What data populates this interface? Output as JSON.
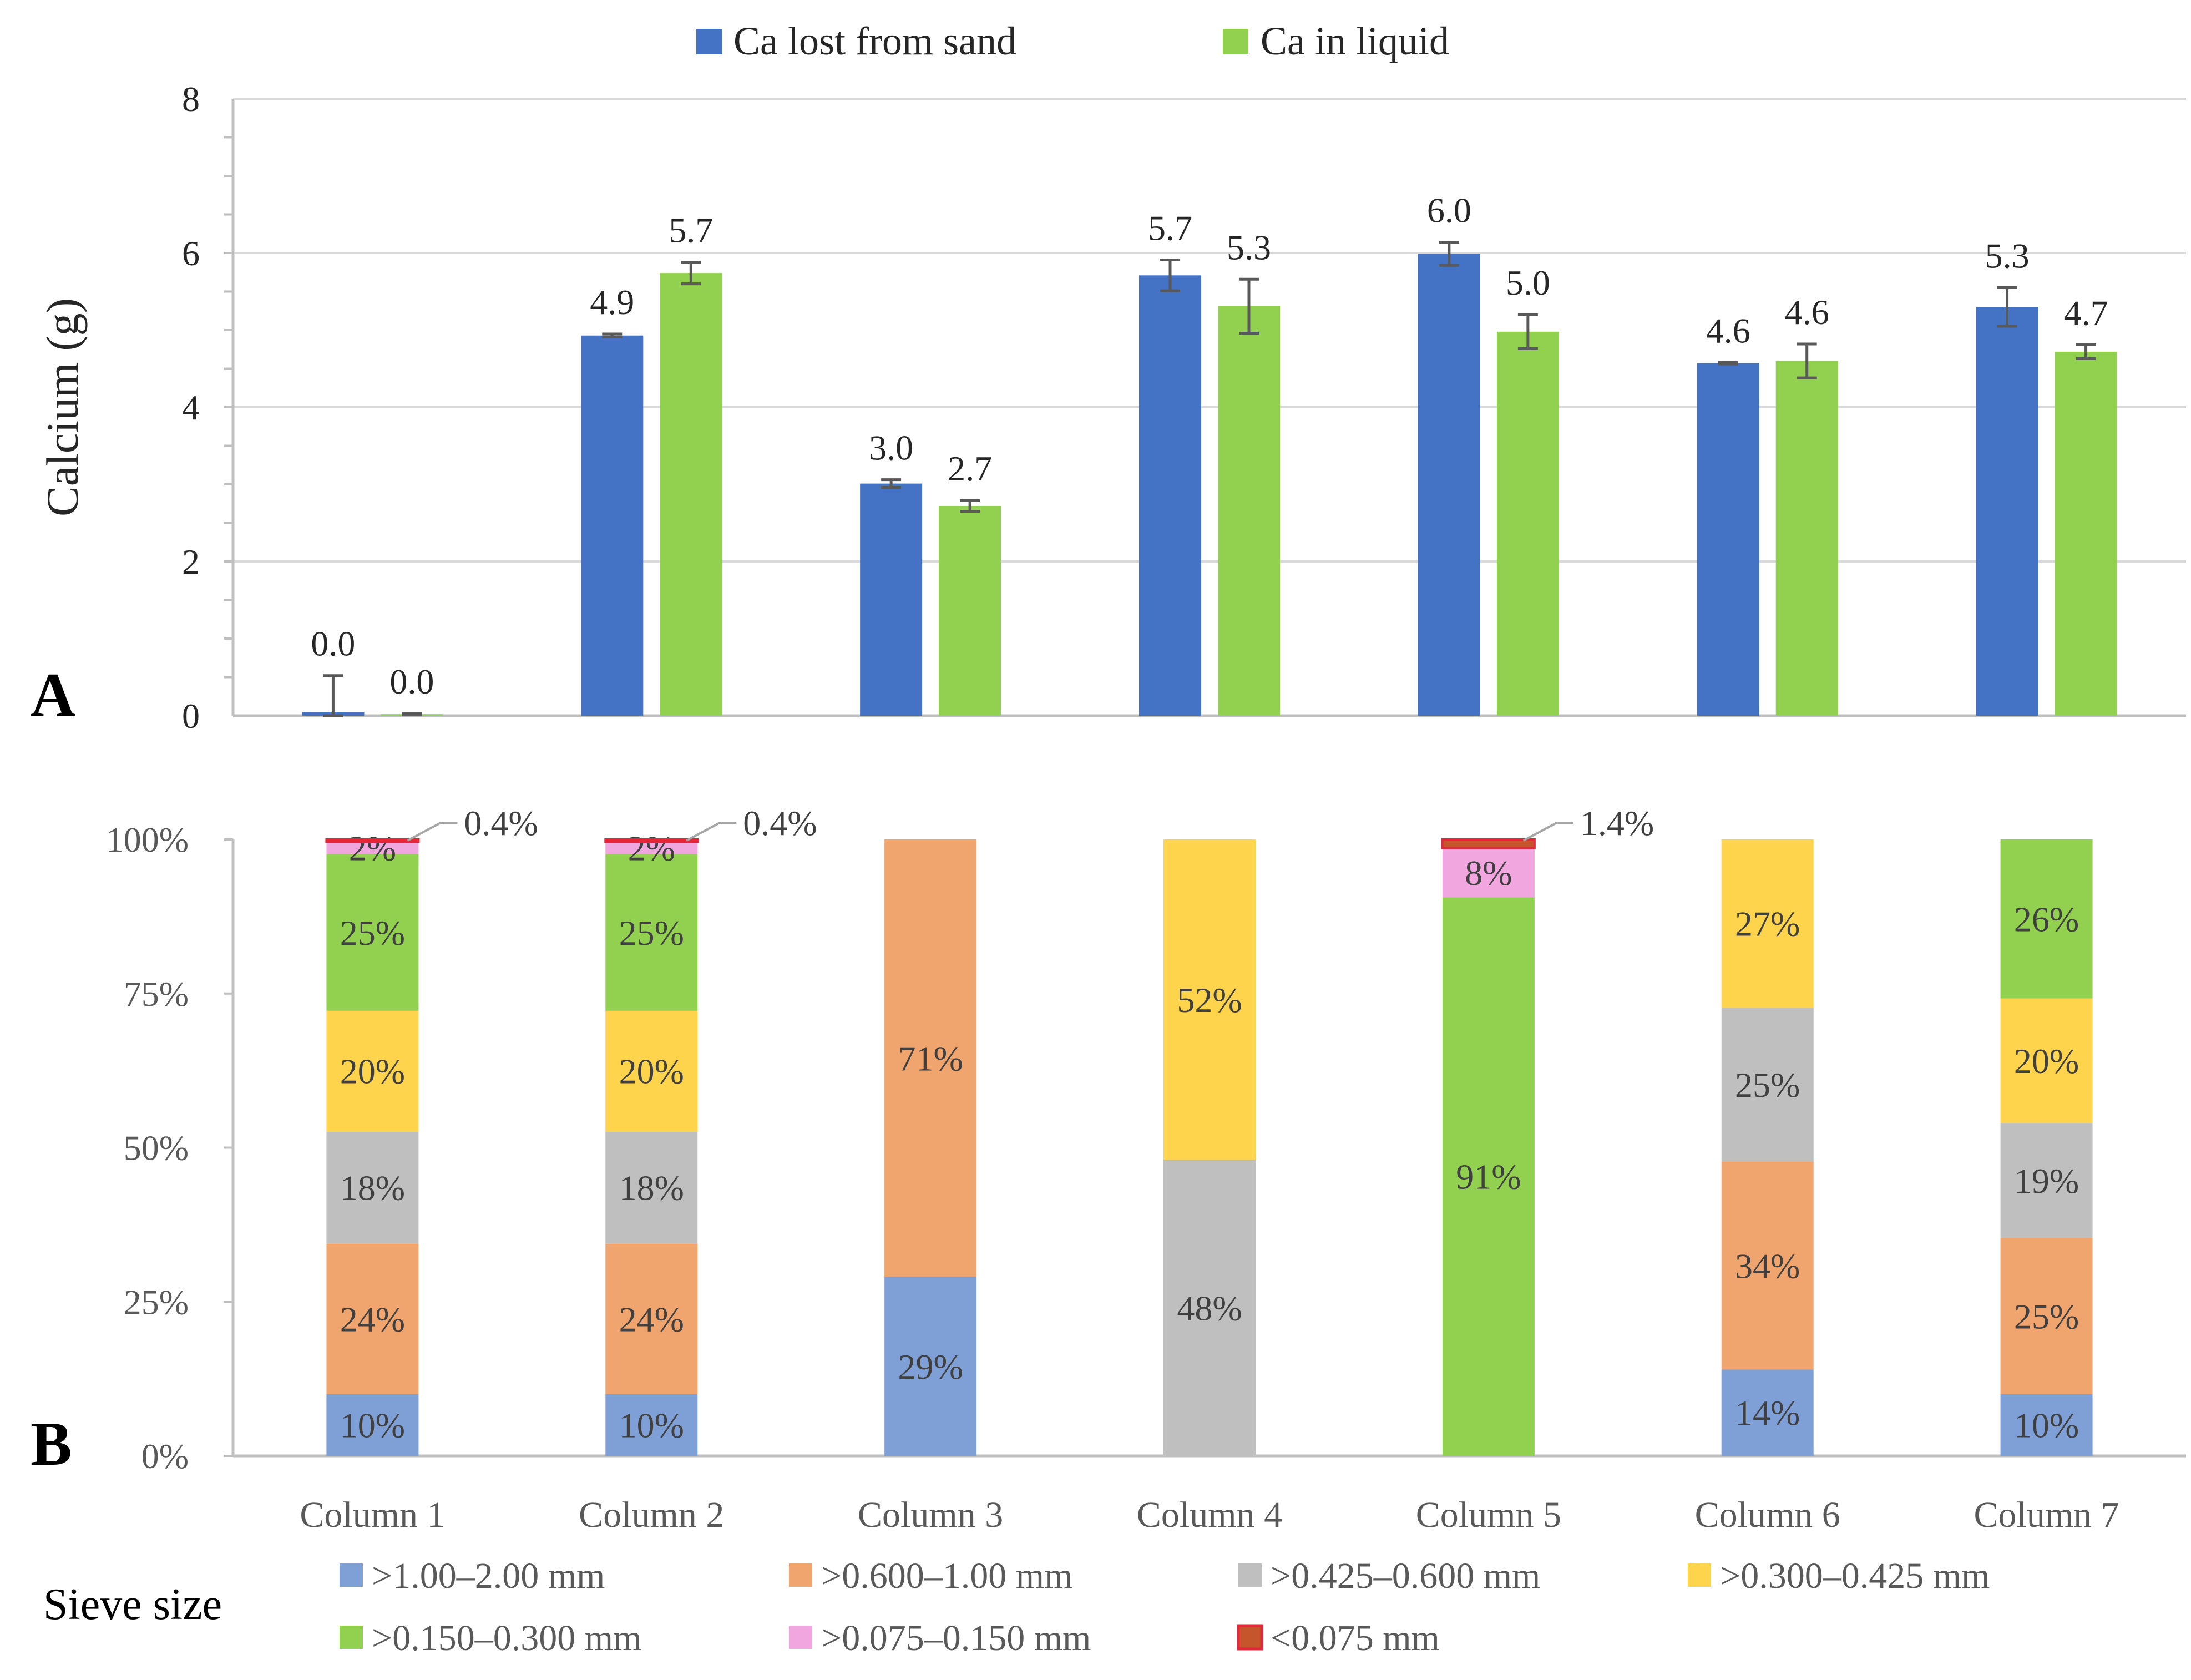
{
  "chart_data": [
    {
      "type": "bar",
      "panel_label": "A",
      "ylabel": "Calcium (g)",
      "ylim": [
        0,
        8
      ],
      "yticks": [
        0,
        2,
        4,
        6,
        8
      ],
      "grid": true,
      "legend_position": "top",
      "categories": [
        "Column 1",
        "Column 2",
        "Column 3",
        "Column 4",
        "Column 5",
        "Column 6",
        "Column 7"
      ],
      "series": [
        {
          "name": "Ca lost from sand",
          "color": "#4472C4",
          "values": [
            0.05,
            4.93,
            3.01,
            5.71,
            5.99,
            4.57,
            5.3
          ],
          "errors": [
            0.47,
            0.02,
            0.05,
            0.2,
            0.15,
            0.01,
            0.25
          ],
          "error_down": [
            0.05,
            0.02,
            0.05,
            0.2,
            0.15,
            0.01,
            0.25
          ],
          "labels": [
            "0.0",
            "4.9",
            "3.0",
            "5.7",
            "6.0",
            "4.6",
            "5.3"
          ]
        },
        {
          "name": "Ca in liquid",
          "color": "#92D050",
          "values": [
            0.02,
            5.74,
            2.72,
            5.31,
            4.98,
            4.6,
            4.72
          ],
          "errors": [
            0.01,
            0.14,
            0.07,
            0.35,
            0.22,
            0.22,
            0.09
          ],
          "error_down": [
            0.01,
            0.14,
            0.07,
            0.35,
            0.22,
            0.22,
            0.09
          ],
          "labels": [
            "0.0",
            "5.7",
            "2.7",
            "5.3",
            "5.0",
            "4.6",
            "4.7"
          ]
        }
      ]
    },
    {
      "type": "bar",
      "stacked": true,
      "panel_label": "B",
      "ylim": [
        0,
        100
      ],
      "yticks": [
        "0%",
        "25%",
        "50%",
        "75%",
        "100%"
      ],
      "categories": [
        "Column 1",
        "Column 2",
        "Column 3",
        "Column 4",
        "Column 5",
        "Column 6",
        "Column 7"
      ],
      "legend_title": "Sieve size",
      "legend_position": "bottom",
      "series": [
        {
          "name": ">1.00–2.00 mm",
          "color": "#7F9FD7",
          "values": [
            10,
            10,
            29,
            0,
            0,
            14,
            10
          ]
        },
        {
          "name": ">0.600–1.00 mm",
          "color": "#F0A46E",
          "values": [
            24.4,
            24.4,
            71,
            0,
            0,
            33.7,
            25.3
          ]
        },
        {
          "name": ">0.425–0.600 mm",
          "color": "#BFBFBF",
          "values": [
            18.2,
            18.2,
            0,
            48,
            0,
            25,
            18.7
          ]
        },
        {
          "name": ">0.300–0.425 mm",
          "color": "#FFD44D",
          "values": [
            19.6,
            19.6,
            0,
            52,
            0,
            27.3,
            20.2
          ]
        },
        {
          "name": ">0.150–0.300 mm",
          "color": "#92D050",
          "values": [
            25.4,
            25.4,
            0,
            0,
            90.6,
            0,
            25.8
          ]
        },
        {
          "name": ">0.075–0.150 mm",
          "color": "#F2A6E0",
          "values": [
            2,
            2,
            0,
            0,
            8,
            0,
            0
          ]
        },
        {
          "name": "<0.075 mm",
          "color": "#C5562B",
          "values": [
            0.4,
            0.4,
            0,
            0,
            1.4,
            0,
            0
          ]
        }
      ],
      "segment_labels": [
        [
          "10%",
          "24%",
          "18%",
          "20%",
          "25%",
          "2%",
          "0.4%"
        ],
        [
          "10%",
          "24%",
          "18%",
          "20%",
          "25%",
          "2%",
          "0.4%"
        ],
        [
          "29%",
          "71%",
          "",
          "",
          "",
          "",
          ""
        ],
        [
          "",
          "",
          "48%",
          "52%",
          "",
          "",
          ""
        ],
        [
          "",
          "",
          "",
          "",
          "91%",
          "8%",
          "1.4%"
        ],
        [
          "14%",
          "34%",
          "25%",
          "27%",
          "",
          "",
          ""
        ],
        [
          "10%",
          "25%",
          "19%",
          "20%",
          "26%",
          "",
          ""
        ]
      ]
    }
  ]
}
